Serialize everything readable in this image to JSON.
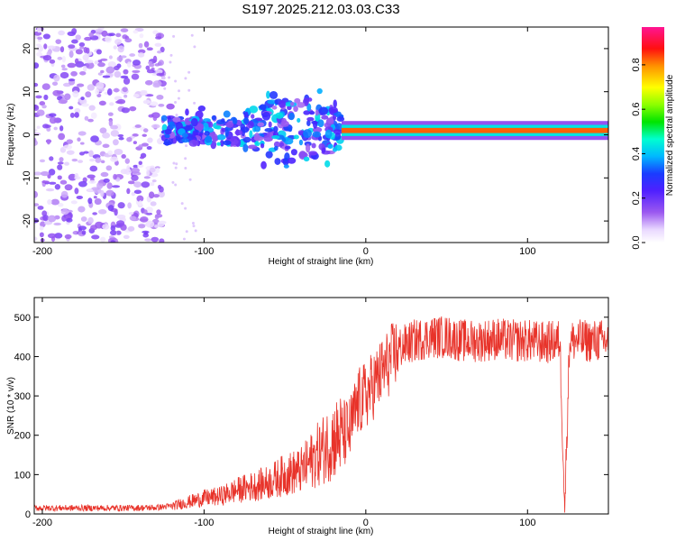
{
  "figure": {
    "title": "S197.2025.212.03.03.C33"
  },
  "chart_data": [
    {
      "type": "heatmap",
      "title": "S197.2025.212.03.03.C33",
      "xlabel": "Height of straight line (km)",
      "ylabel": "Frequency (Hz)",
      "xlim": [
        -205,
        150
      ],
      "ylim": [
        -25,
        25
      ],
      "xticks": [
        -200,
        -100,
        0,
        100
      ],
      "xtick_labels": [
        "-200",
        "-100",
        "0",
        "100"
      ],
      "yticks": [
        -20,
        -10,
        0,
        10,
        20
      ],
      "ytick_labels": [
        "-20",
        "-10",
        "0",
        "10",
        "20"
      ],
      "colorbar": {
        "label": "Normalized spectral amplitude",
        "range": [
          0.0,
          0.97
        ],
        "ticks": [
          0.0,
          0.2,
          0.4,
          0.6,
          0.8
        ],
        "tick_labels": [
          "0.0",
          "0.2",
          "0.4",
          "0.6",
          "0.8"
        ],
        "colormap": "rainbow (violet-blue-cyan-green-yellow-red-magenta)"
      },
      "regions": [
        {
          "name": "noise",
          "x_range": [
            -205,
            -125
          ],
          "freq_range": [
            -25,
            25
          ],
          "amplitude": 0.1
        },
        {
          "name": "onset cluster",
          "x_range": [
            -125,
            -15
          ],
          "freq_range": [
            -8,
            12
          ],
          "amplitude": 0.25
        },
        {
          "name": "tone",
          "x_range": [
            -15,
            150
          ],
          "frequency": 1,
          "amplitude": 0.85
        }
      ],
      "grid": false
    },
    {
      "type": "line",
      "xlabel": "Height of straight line (km)",
      "ylabel": "SNR (10 * v/v)",
      "xlim": [
        -205,
        150
      ],
      "ylim": [
        0,
        550
      ],
      "xticks": [
        -200,
        -100,
        0,
        100
      ],
      "xtick_labels": [
        "-200",
        "-100",
        "0",
        "100"
      ],
      "yticks": [
        0,
        100,
        200,
        300,
        400,
        500
      ],
      "ytick_labels": [
        "0",
        "100",
        "200",
        "300",
        "400",
        "500"
      ],
      "color": "#e8332a",
      "series": [
        {
          "x": [
            -205,
            -190,
            -170,
            -150,
            -130,
            -120,
            -110,
            -100,
            -90,
            -80,
            -70,
            -60,
            -50,
            -40,
            -30,
            -20,
            -10,
            -5,
            0,
            10,
            20,
            30,
            40,
            50,
            60,
            70,
            80,
            90,
            100,
            110,
            120,
            123,
            126,
            130,
            140,
            150
          ],
          "values": [
            15,
            15,
            15,
            15,
            16,
            20,
            30,
            40,
            45,
            60,
            70,
            80,
            100,
            110,
            150,
            190,
            210,
            280,
            300,
            360,
            420,
            440,
            450,
            450,
            440,
            440,
            445,
            440,
            440,
            435,
            440,
            20,
            440,
            440,
            440,
            440
          ]
        }
      ],
      "grid": false
    }
  ]
}
